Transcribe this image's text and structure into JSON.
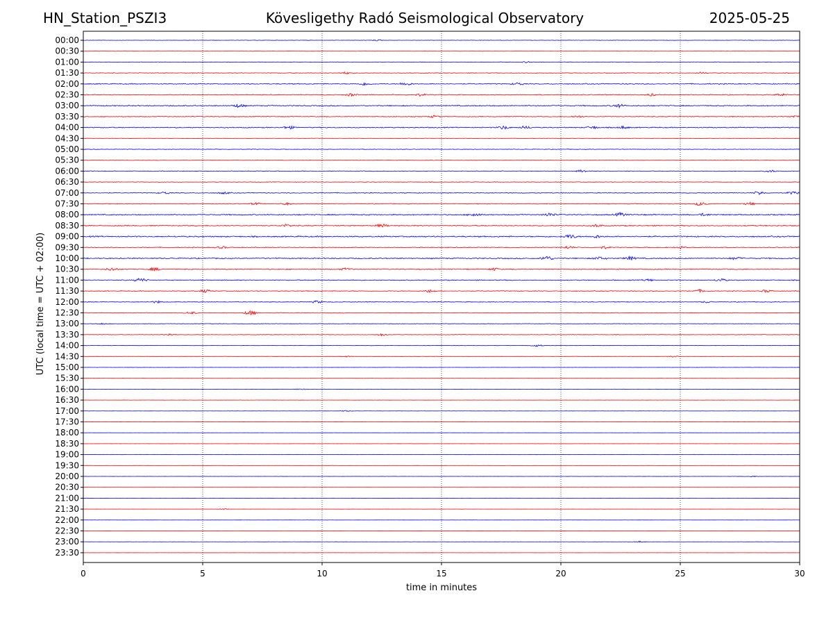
{
  "header": {
    "station": "HN_Station_PSZI3",
    "observatory": "Kövesligethy Radó Seismological Observatory",
    "date": "2025-05-25"
  },
  "chart_data": {
    "type": "line",
    "title": "Kövesligethy Radó Seismological Observatory",
    "xlabel": "time in minutes",
    "ylabel": "UTC (local time = UTC + 02:00)",
    "xlim": [
      0,
      30
    ],
    "xticks": [
      0,
      5,
      10,
      15,
      20,
      25,
      30
    ],
    "grid": "vertical dotted lines at each x tick",
    "series_colors": [
      "#0000ff",
      "#ff0000"
    ],
    "rows": [
      {
        "label": "00:00",
        "activity": 0.2,
        "events": [
          [
            12.3,
            0.8
          ]
        ]
      },
      {
        "label": "00:30",
        "activity": 0.15,
        "events": []
      },
      {
        "label": "01:00",
        "activity": 0.25,
        "events": [
          [
            18.6,
            1.0
          ]
        ]
      },
      {
        "label": "01:30",
        "activity": 0.35,
        "events": [
          [
            11.0,
            1.5
          ],
          [
            25.9,
            1.2
          ]
        ]
      },
      {
        "label": "02:00",
        "activity": 0.5,
        "events": [
          [
            11.8,
            2.0
          ],
          [
            13.5,
            2.5
          ],
          [
            18.2,
            1.8
          ]
        ]
      },
      {
        "label": "02:30",
        "activity": 0.45,
        "events": [
          [
            11.2,
            1.8
          ],
          [
            14.1,
            1.5
          ],
          [
            23.8,
            1.6
          ],
          [
            29.2,
            1.8
          ]
        ]
      },
      {
        "label": "03:00",
        "activity": 0.55,
        "events": [
          [
            6.5,
            2.5
          ],
          [
            22.4,
            2.5
          ]
        ]
      },
      {
        "label": "03:30",
        "activity": 0.4,
        "events": [
          [
            14.7,
            1.5
          ],
          [
            20.7,
            1.5
          ],
          [
            29.8,
            1.5
          ]
        ]
      },
      {
        "label": "04:00",
        "activity": 0.5,
        "events": [
          [
            8.6,
            2.2
          ],
          [
            17.6,
            2.5
          ],
          [
            18.5,
            2.0
          ],
          [
            21.3,
            2.0
          ],
          [
            22.6,
            1.8
          ]
        ]
      },
      {
        "label": "04:30",
        "activity": 0.25,
        "events": []
      },
      {
        "label": "05:00",
        "activity": 0.3,
        "events": []
      },
      {
        "label": "05:30",
        "activity": 0.25,
        "events": []
      },
      {
        "label": "06:00",
        "activity": 0.35,
        "events": [
          [
            20.9,
            1.8
          ],
          [
            28.8,
            1.5
          ]
        ]
      },
      {
        "label": "06:30",
        "activity": 0.3,
        "events": []
      },
      {
        "label": "07:00",
        "activity": 0.4,
        "events": [
          [
            3.4,
            1.8
          ],
          [
            5.9,
            1.5
          ],
          [
            28.3,
            2.5
          ],
          [
            29.7,
            1.8
          ]
        ]
      },
      {
        "label": "07:30",
        "activity": 0.4,
        "events": [
          [
            7.2,
            1.5
          ],
          [
            8.5,
            1.5
          ],
          [
            25.9,
            3.0
          ],
          [
            27.9,
            1.8
          ]
        ]
      },
      {
        "label": "08:00",
        "activity": 0.6,
        "events": [
          [
            16.4,
            2.5
          ],
          [
            19.5,
            2.5
          ],
          [
            22.5,
            2.5
          ],
          [
            26.0,
            1.8
          ]
        ]
      },
      {
        "label": "08:30",
        "activity": 0.55,
        "events": [
          [
            8.5,
            1.8
          ],
          [
            12.5,
            2.2
          ],
          [
            21.5,
            1.8
          ]
        ]
      },
      {
        "label": "09:00",
        "activity": 0.65,
        "events": [
          [
            20.4,
            3.0
          ],
          [
            21.5,
            1.8
          ]
        ]
      },
      {
        "label": "09:30",
        "activity": 0.45,
        "events": [
          [
            5.8,
            1.5
          ],
          [
            20.3,
            2.0
          ],
          [
            21.8,
            1.8
          ],
          [
            25.0,
            1.5
          ]
        ]
      },
      {
        "label": "10:00",
        "activity": 0.6,
        "events": [
          [
            19.4,
            3.5
          ],
          [
            21.6,
            2.0
          ],
          [
            22.9,
            2.5
          ],
          [
            27.3,
            1.8
          ]
        ]
      },
      {
        "label": "10:30",
        "activity": 0.5,
        "events": [
          [
            1.2,
            2.0
          ],
          [
            3.0,
            2.0
          ],
          [
            11.0,
            1.5
          ],
          [
            17.2,
            1.8
          ]
        ]
      },
      {
        "label": "11:00",
        "activity": 0.45,
        "events": [
          [
            2.4,
            3.0
          ],
          [
            23.7,
            1.5
          ],
          [
            26.7,
            2.0
          ]
        ]
      },
      {
        "label": "11:30",
        "activity": 0.4,
        "events": [
          [
            5.1,
            2.0
          ],
          [
            14.5,
            2.0
          ],
          [
            25.8,
            2.0
          ],
          [
            28.6,
            1.8
          ]
        ]
      },
      {
        "label": "12:00",
        "activity": 0.35,
        "events": [
          [
            3.1,
            1.5
          ],
          [
            9.8,
            1.8
          ],
          [
            26.1,
            1.2
          ]
        ]
      },
      {
        "label": "12:30",
        "activity": 0.35,
        "events": [
          [
            4.5,
            1.8
          ],
          [
            7.0,
            3.5
          ]
        ]
      },
      {
        "label": "13:00",
        "activity": 0.25,
        "events": [
          [
            0.8,
            1.0
          ]
        ]
      },
      {
        "label": "13:30",
        "activity": 0.3,
        "events": [
          [
            3.6,
            1.5
          ],
          [
            12.5,
            1.8
          ]
        ]
      },
      {
        "label": "14:00",
        "activity": 0.2,
        "events": [
          [
            19.0,
            1.5
          ]
        ]
      },
      {
        "label": "14:30",
        "activity": 0.15,
        "events": [
          [
            11.0,
            1.0
          ],
          [
            24.7,
            1.0
          ]
        ]
      },
      {
        "label": "15:00",
        "activity": 0.1,
        "events": []
      },
      {
        "label": "15:30",
        "activity": 0.1,
        "events": []
      },
      {
        "label": "16:00",
        "activity": 0.1,
        "events": [
          [
            9.1,
            0.8
          ]
        ]
      },
      {
        "label": "16:30",
        "activity": 0.1,
        "events": []
      },
      {
        "label": "17:00",
        "activity": 0.1,
        "events": [
          [
            11.0,
            0.8
          ]
        ]
      },
      {
        "label": "17:30",
        "activity": 0.08,
        "events": []
      },
      {
        "label": "18:00",
        "activity": 0.08,
        "events": []
      },
      {
        "label": "18:30",
        "activity": 0.08,
        "events": []
      },
      {
        "label": "19:00",
        "activity": 0.08,
        "events": []
      },
      {
        "label": "19:30",
        "activity": 0.08,
        "events": []
      },
      {
        "label": "20:00",
        "activity": 0.1,
        "events": [
          [
            28.0,
            0.8
          ]
        ]
      },
      {
        "label": "20:30",
        "activity": 0.08,
        "events": []
      },
      {
        "label": "21:00",
        "activity": 0.1,
        "events": []
      },
      {
        "label": "21:30",
        "activity": 0.1,
        "events": [
          [
            5.9,
            0.8
          ]
        ]
      },
      {
        "label": "22:00",
        "activity": 0.08,
        "events": []
      },
      {
        "label": "22:30",
        "activity": 0.1,
        "events": []
      },
      {
        "label": "23:00",
        "activity": 0.1,
        "events": [
          [
            23.3,
            1.0
          ]
        ]
      },
      {
        "label": "23:30",
        "activity": 0.08,
        "events": []
      }
    ]
  }
}
